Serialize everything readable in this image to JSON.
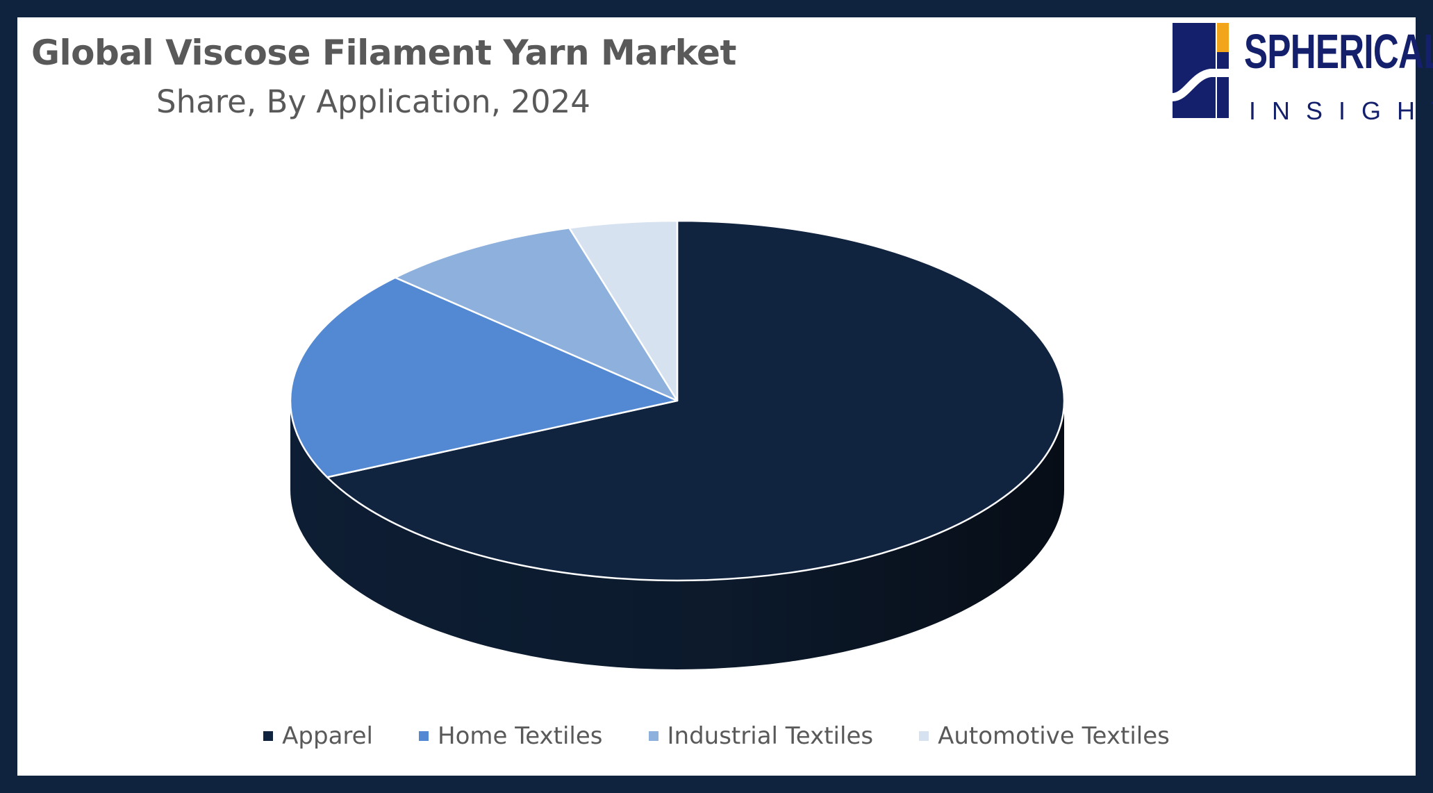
{
  "title": "Global Viscose Filament Yarn Market",
  "subtitle": "Share, By Application, 2024",
  "logo": {
    "line1": "SPHERICAL",
    "line2": "INSIGHTS"
  },
  "colors": {
    "frame": "#0f233f",
    "apparel": "#10233f",
    "home_textiles": "#5389d2",
    "industrial_textiles": "#8db0dd",
    "automotive_textiles": "#d7e2f0"
  },
  "chart_data": {
    "type": "pie",
    "style": "3d",
    "series": [
      {
        "name": "Apparel",
        "value": 68,
        "color": "#10233f"
      },
      {
        "name": "Home Textiles",
        "value": 19,
        "color": "#5389d2"
      },
      {
        "name": "Industrial Textiles",
        "value": 8.5,
        "color": "#8db0dd"
      },
      {
        "name": "Automotive Textiles",
        "value": 4.5,
        "color": "#d7e2f0"
      }
    ],
    "legend_position": "bottom"
  }
}
